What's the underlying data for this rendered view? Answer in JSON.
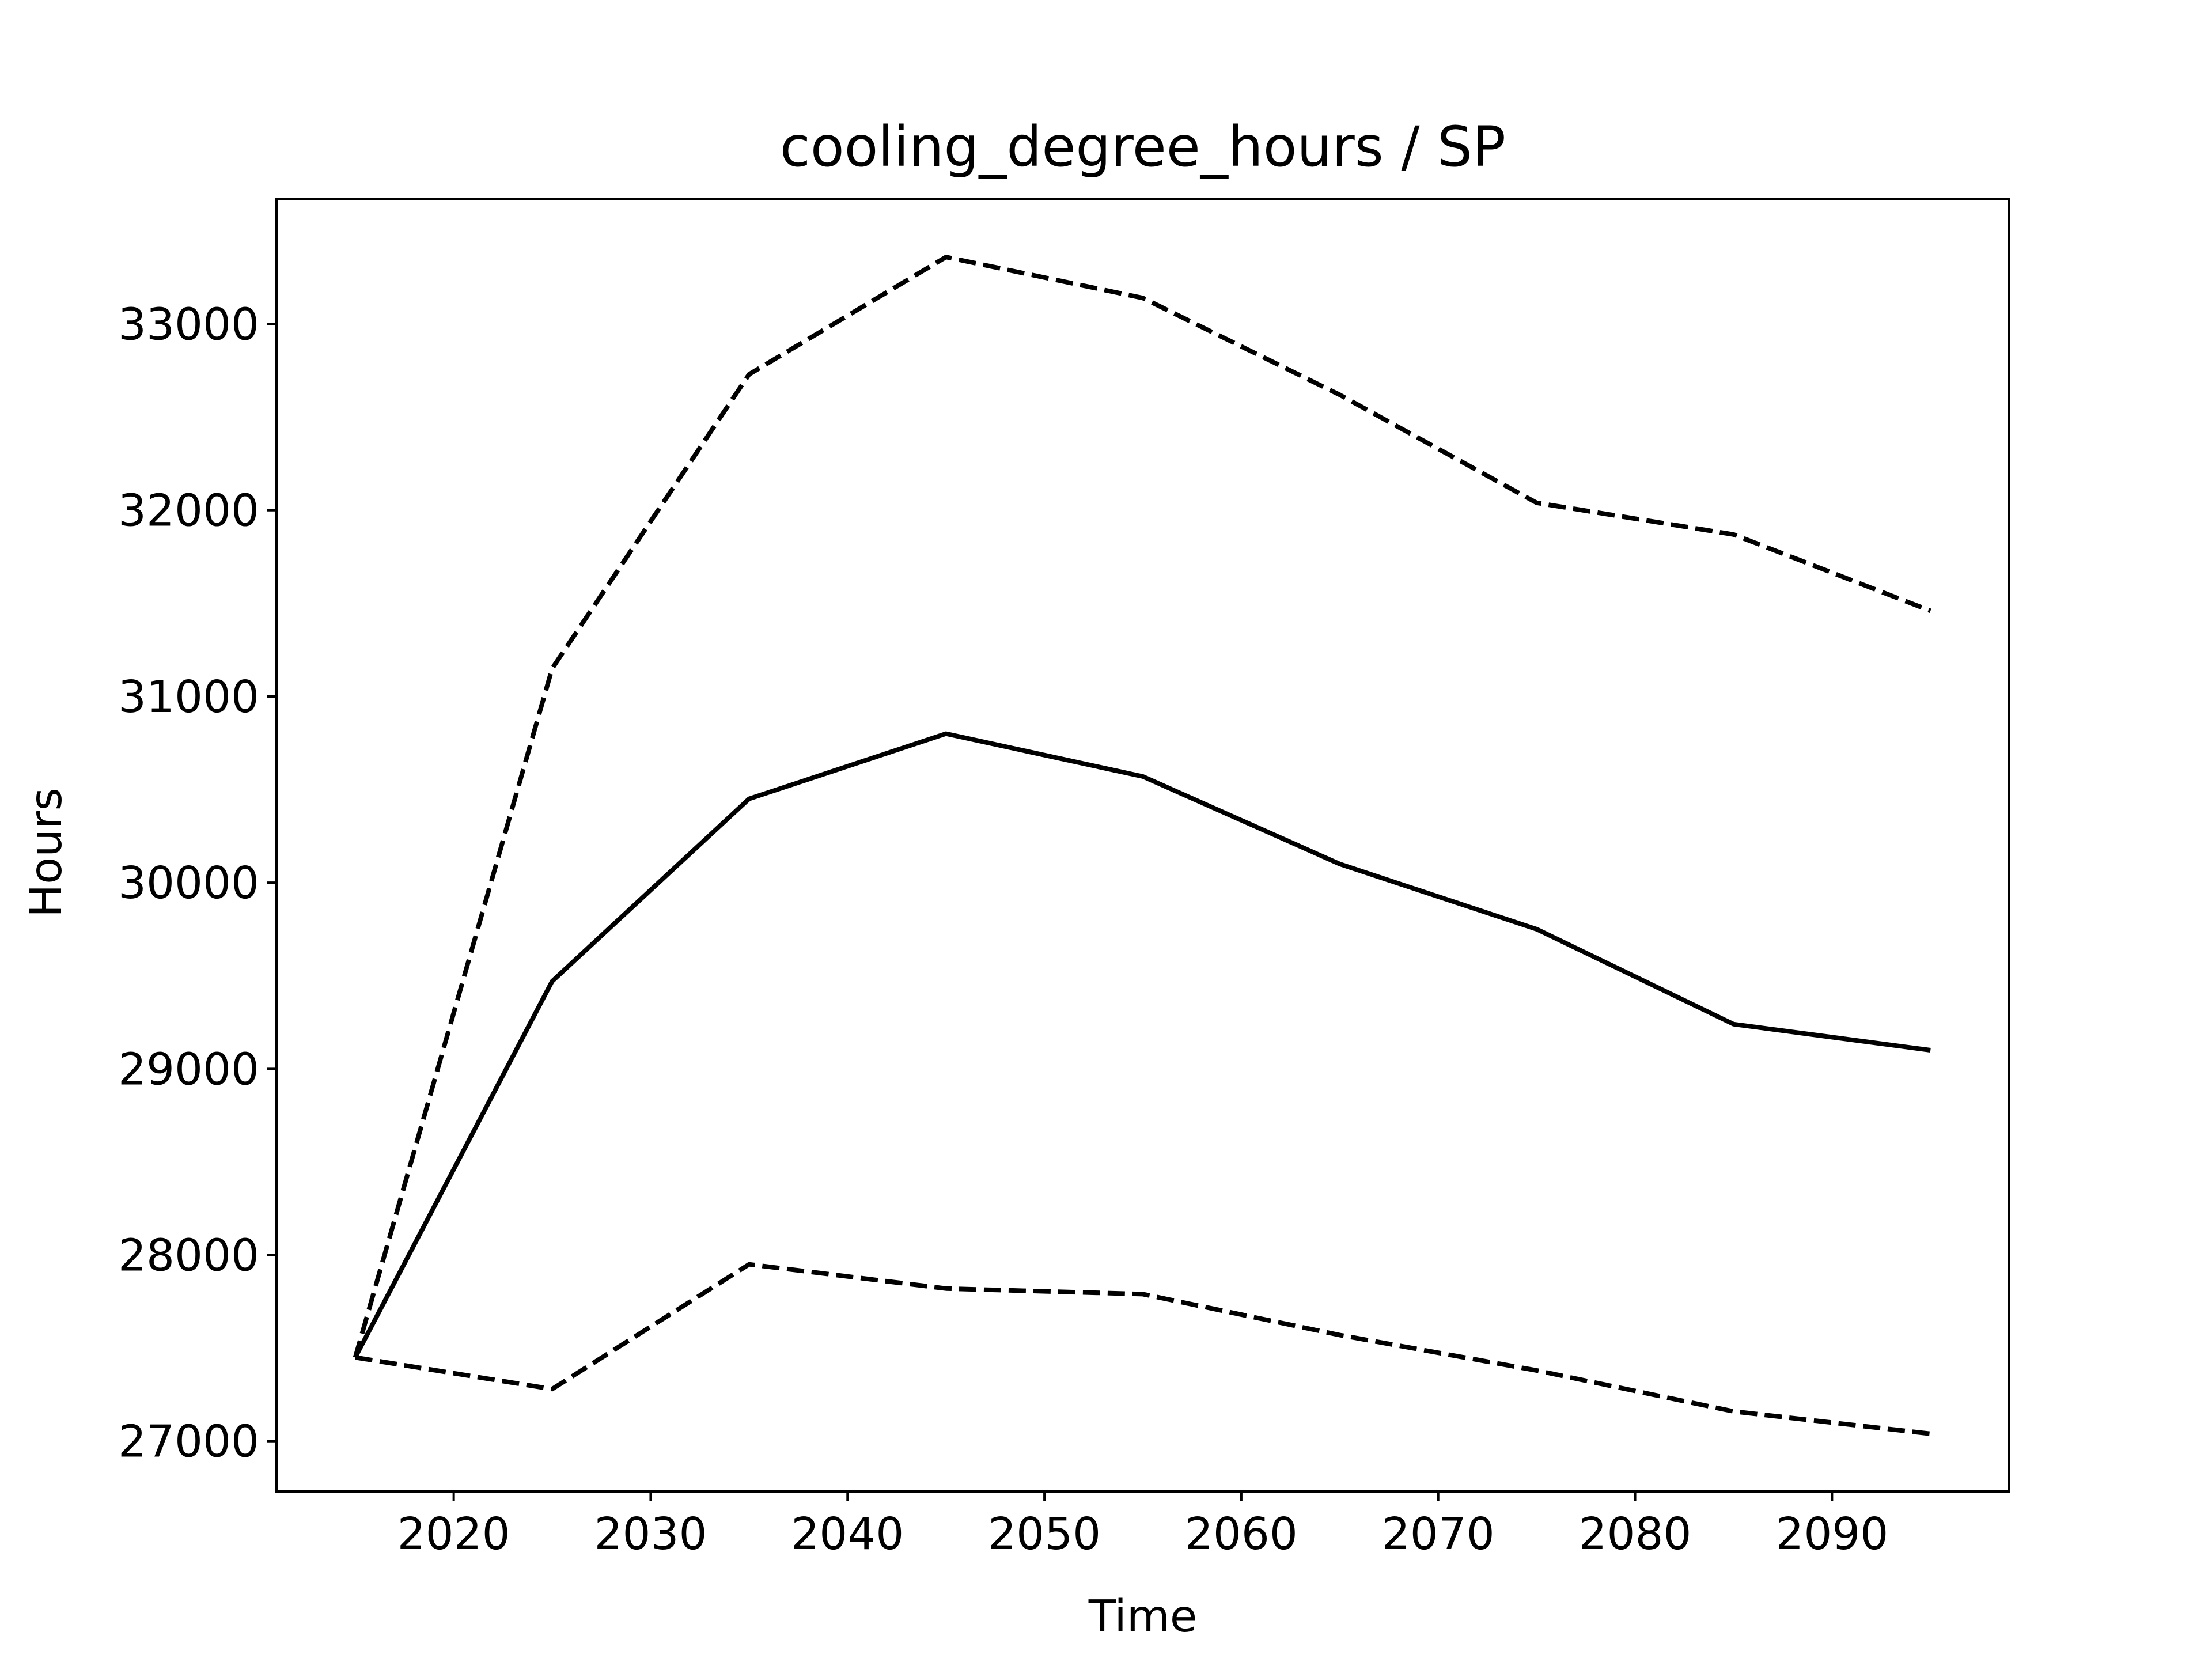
{
  "chart_data": {
    "type": "line",
    "title": "cooling_degree_hours / SP",
    "xlabel": "Time",
    "ylabel": "Hours",
    "xlim": [
      2011,
      2099
    ],
    "ylim": [
      26730,
      33670
    ],
    "xticks": [
      2020,
      2030,
      2040,
      2050,
      2060,
      2070,
      2080,
      2090
    ],
    "yticks": [
      27000,
      28000,
      29000,
      30000,
      31000,
      32000,
      33000
    ],
    "x": [
      2015,
      2025,
      2035,
      2045,
      2055,
      2065,
      2075,
      2085,
      2095
    ],
    "series": [
      {
        "style": "solid",
        "color": "#000000",
        "values": [
          27450,
          29470,
          30450,
          30800,
          30570,
          30100,
          29750,
          29240,
          29100
        ]
      },
      {
        "style": "dashed",
        "color": "#000000",
        "values": [
          27450,
          31150,
          32730,
          33360,
          33140,
          32620,
          32040,
          31870,
          31460
        ]
      },
      {
        "style": "dashed",
        "color": "#000000",
        "values": [
          27450,
          27280,
          27950,
          27820,
          27790,
          27570,
          27380,
          27160,
          27040
        ]
      }
    ],
    "grid": false,
    "legend": "none"
  }
}
